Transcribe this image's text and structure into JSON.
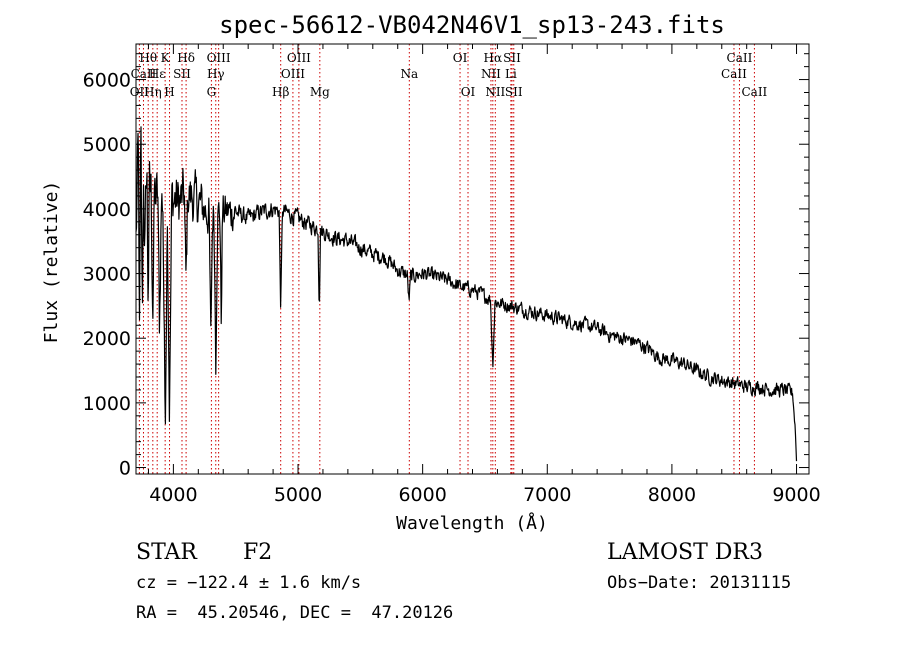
{
  "chart_data": {
    "type": "line",
    "title": "spec-56612-VB042N46V1_sp13-243.fits",
    "xlabel": "Wavelength (Å)",
    "ylabel": "Flux (relative)",
    "xlim": [
      3700,
      9100
    ],
    "ylim": [
      -100,
      6550
    ],
    "x_ticks": [
      4000,
      5000,
      6000,
      7000,
      8000,
      9000
    ],
    "x_tick_labels": [
      "4000",
      "5000",
      "6000",
      "7000",
      "8000",
      "9000"
    ],
    "y_ticks": [
      0,
      1000,
      2000,
      3000,
      4000,
      5000,
      6000
    ],
    "y_tick_labels": [
      "0",
      "1000",
      "2000",
      "3000",
      "4000",
      "5000",
      "6000"
    ],
    "continuum": {
      "x": [
        3700,
        3720,
        3760,
        3800,
        3850,
        3900,
        3950,
        4000,
        4050,
        4100,
        4200,
        4300,
        4400,
        4500,
        4600,
        4700,
        4800,
        4900,
        5000,
        5100,
        5200,
        5300,
        5400,
        5500,
        5600,
        5700,
        5800,
        5900,
        6000,
        6100,
        6200,
        6300,
        6400,
        6500,
        6600,
        6700,
        6800,
        6900,
        7000,
        7100,
        7200,
        7300,
        7400,
        7500,
        7600,
        7700,
        7800,
        7900,
        8000,
        8100,
        8200,
        8300,
        8400,
        8500,
        8600,
        8700,
        8800,
        8900,
        8970,
        8990,
        9000
      ],
      "y": [
        3500,
        5100,
        4600,
        4300,
        4200,
        4100,
        4150,
        4150,
        4100,
        4250,
        4100,
        3900,
        3950,
        3950,
        3850,
        3950,
        4000,
        3950,
        3850,
        3750,
        3650,
        3550,
        3500,
        3400,
        3300,
        3250,
        3050,
        2950,
        3000,
        2950,
        2900,
        2800,
        2750,
        2650,
        2550,
        2500,
        2450,
        2400,
        2350,
        2300,
        2250,
        2200,
        2150,
        2050,
        2000,
        1950,
        1850,
        1700,
        1650,
        1600,
        1500,
        1400,
        1350,
        1300,
        1250,
        1250,
        1200,
        1200,
        1150,
        600,
        100
      ]
    },
    "absorption_features": {
      "x": [
        3728,
        3750,
        3770,
        3797,
        3835,
        3889,
        3934,
        3969,
        4101,
        4300,
        4340,
        4384,
        4861,
        5170,
        5890,
        6563
      ],
      "depth": [
        3000,
        2500,
        1500,
        1700,
        1800,
        2000,
        3500,
        3300,
        1500,
        2000,
        2200,
        1700,
        1500,
        1200,
        400,
        1000
      ],
      "width": [
        2,
        2,
        2,
        2,
        3,
        3,
        4,
        4,
        3,
        3,
        3,
        2,
        3,
        2,
        3,
        4
      ]
    },
    "noise_amplitude_blue": 600,
    "noise_amplitude_red": 170,
    "lines": [
      {
        "label": "OII",
        "x": 3727,
        "row": 3
      },
      {
        "label": "Hθ",
        "x": 3798,
        "row": 1
      },
      {
        "label": "CaII",
        "x": 3760,
        "row": 2
      },
      {
        "label": "K",
        "x": 3934,
        "row": 1
      },
      {
        "label": "H",
        "x": 3969,
        "row": 3
      },
      {
        "label": "Hε",
        "x": 3870,
        "row": 2
      },
      {
        "label": "Hη",
        "x": 3835,
        "row": 3
      },
      {
        "label": "SII",
        "x": 4069,
        "row": 2
      },
      {
        "label": "Hδ",
        "x": 4102,
        "row": 1
      },
      {
        "label": "G",
        "x": 4305,
        "row": 3
      },
      {
        "label": "Hγ",
        "x": 4340,
        "row": 2
      },
      {
        "label": "OIII",
        "x": 4363,
        "row": 1
      },
      {
        "label": "Hβ",
        "x": 4861,
        "row": 3
      },
      {
        "label": "OIII",
        "x": 4959,
        "row": 2
      },
      {
        "label": "OIII",
        "x": 5007,
        "row": 1
      },
      {
        "label": "Mg",
        "x": 5175,
        "row": 3
      },
      {
        "label": "Na",
        "x": 5893,
        "row": 2
      },
      {
        "label": "OI",
        "x": 6300,
        "row": 1
      },
      {
        "label": "OI",
        "x": 6364,
        "row": 3
      },
      {
        "label": "NII",
        "x": 6548,
        "row": 2
      },
      {
        "label": "Hα",
        "x": 6563,
        "row": 1
      },
      {
        "label": "NII",
        "x": 6583,
        "row": 3
      },
      {
        "label": "Li",
        "x": 6708,
        "row": 2
      },
      {
        "label": "SII",
        "x": 6717,
        "row": 1
      },
      {
        "label": "SII",
        "x": 6731,
        "row": 3
      },
      {
        "label": "CaII",
        "x": 8498,
        "row": 2
      },
      {
        "label": "CaII",
        "x": 8542,
        "row": 1
      },
      {
        "label": "CaII",
        "x": 8662,
        "row": 3
      }
    ],
    "colors": {
      "spectrum": "#000000",
      "line_markers": "#cc0000",
      "axes": "#000000"
    }
  },
  "footer": {
    "object_class": "STAR",
    "subclass": "F2",
    "survey": "LAMOST DR3",
    "cz": "cz = −122.4 ± 1.6 km/s",
    "obs_date": "Obs−Date: 20131115",
    "coords": "RA =  45.20546, DEC =  47.20126"
  }
}
